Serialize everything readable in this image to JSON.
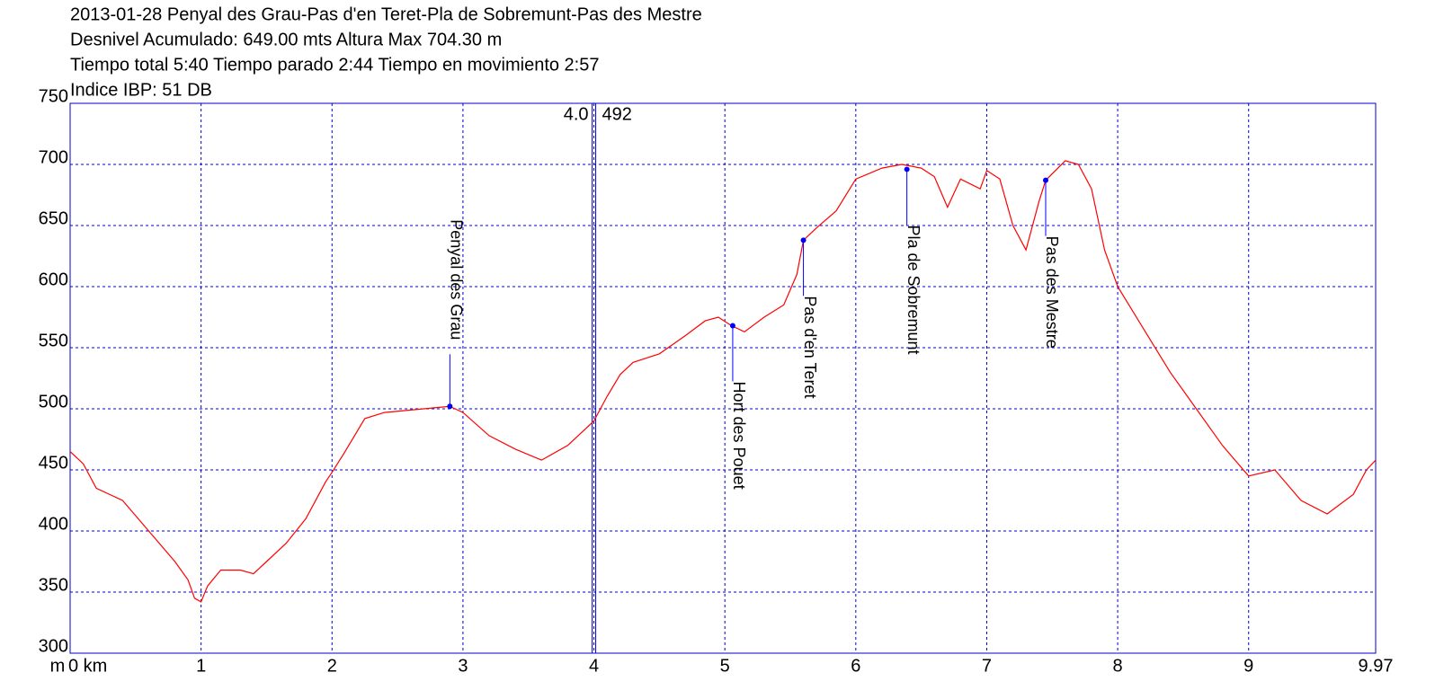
{
  "chart_data": {
    "type": "line",
    "title": "2013-01-28 Penyal des Grau-Pas d'en Teret-Pla de Sobremunt-Pas des Mestre",
    "subtitles": [
      "Desnivel Acumulado: 649.00 mts  Altura Max 704.30 m",
      "Tiempo total 5:40 Tiempo parado 2:44 Tiempo en movimiento 2:57",
      "Indice IBP: 51 DB"
    ],
    "y_unit": "m",
    "xlim": [
      0,
      9.97
    ],
    "xticks": [
      {
        "value": 0,
        "label": "0 km"
      },
      1,
      2,
      3,
      4,
      5,
      6,
      7,
      8,
      9,
      9.97
    ],
    "ylim": [
      300,
      750
    ],
    "yticks": [
      300,
      350,
      400,
      450,
      500,
      550,
      600,
      650,
      700,
      750
    ],
    "grid": true,
    "x": [
      0,
      0.1,
      0.2,
      0.4,
      0.6,
      0.8,
      0.9,
      0.95,
      1.0,
      1.05,
      1.15,
      1.3,
      1.4,
      1.5,
      1.65,
      1.8,
      1.95,
      2.0,
      2.1,
      2.25,
      2.4,
      2.6,
      2.9,
      3.0,
      3.2,
      3.4,
      3.6,
      3.8,
      4.0,
      4.1,
      4.2,
      4.3,
      4.5,
      4.7,
      4.85,
      4.95,
      5.05,
      5.15,
      5.3,
      5.45,
      5.55,
      5.6,
      5.7,
      5.85,
      6.0,
      6.2,
      6.35,
      6.5,
      6.6,
      6.7,
      6.8,
      6.95,
      7.0,
      7.1,
      7.2,
      7.3,
      7.4,
      7.45,
      7.6,
      7.7,
      7.8,
      7.9,
      8.0,
      8.2,
      8.4,
      8.6,
      8.8,
      9.0,
      9.2,
      9.4,
      9.6,
      9.8,
      9.9,
      9.97
    ],
    "series": [
      {
        "color": "#ff0000",
        "values": [
          465,
          455,
          435,
          425,
          400,
          375,
          360,
          345,
          342,
          355,
          368,
          368,
          365,
          375,
          390,
          410,
          440,
          448,
          465,
          492,
          497,
          499,
          502,
          497,
          478,
          467,
          458,
          470,
          490,
          510,
          528,
          538,
          545,
          560,
          572,
          575,
          568,
          563,
          575,
          585,
          610,
          638,
          648,
          662,
          688,
          697,
          700,
          697,
          690,
          665,
          688,
          680,
          695,
          688,
          650,
          630,
          670,
          687,
          703,
          700,
          680,
          630,
          600,
          565,
          530,
          500,
          470,
          445,
          450,
          425,
          414,
          430,
          450,
          458
        ]
      }
    ],
    "waypoints": [
      {
        "name": "Penyal des Grau",
        "x": 2.9,
        "y": 502,
        "label_side": "above"
      },
      {
        "name": "Hort des Pouet",
        "x": 5.06,
        "y": 568,
        "label_side": "below"
      },
      {
        "name": "Pas d'en Teret",
        "x": 5.6,
        "y": 638,
        "label_side": "below"
      },
      {
        "name": "Pla de Sobremunt",
        "x": 6.39,
        "y": 696,
        "label_side": "below"
      },
      {
        "name": "Pas des Mestre",
        "x": 7.45,
        "y": 687,
        "label_side": "below"
      }
    ],
    "cursor": {
      "x": 4.0,
      "x_label": "4.0",
      "y": 492
    },
    "grid_color": "#0000cc",
    "marker_color": "#0000ff"
  }
}
